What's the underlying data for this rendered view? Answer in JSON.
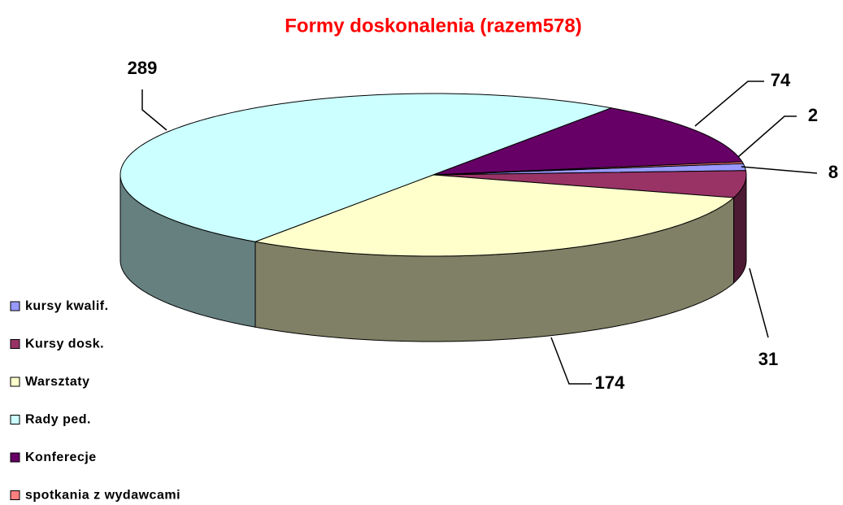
{
  "chart_data": {
    "type": "pie3d",
    "title": "Formy doskonalenia (razem578)",
    "categories": [
      "kursy kwalif.",
      "Kursy dosk.",
      "Warsztaty",
      "Rady ped.",
      "Konferecje",
      "spotkania z wydawcami"
    ],
    "values": [
      8,
      31,
      174,
      289,
      74,
      2
    ],
    "colors": [
      "#9999ff",
      "#993366",
      "#ffffcc",
      "#ccffff",
      "#660066",
      "#ff8080"
    ],
    "legend": "left"
  }
}
